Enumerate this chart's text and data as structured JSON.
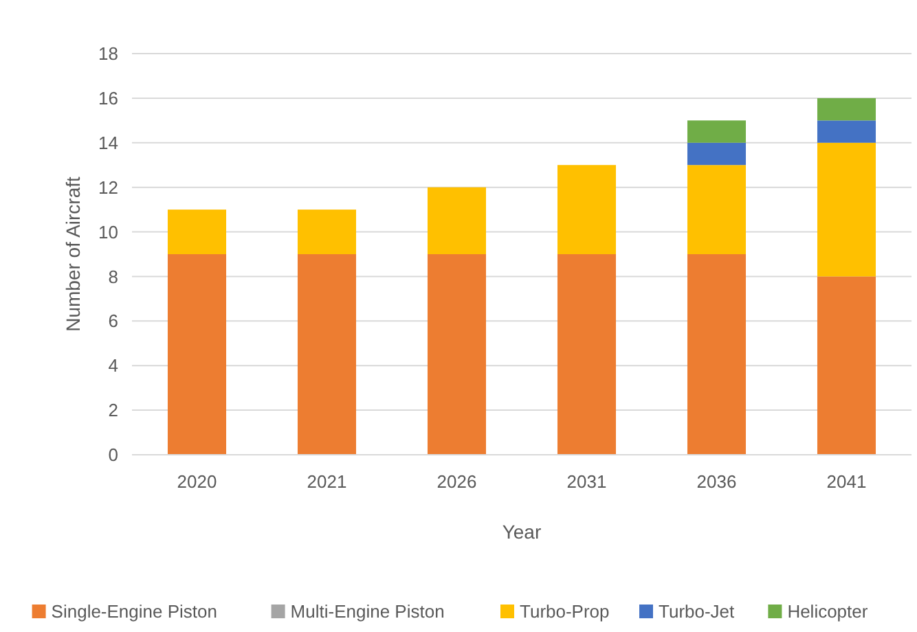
{
  "chart_data": {
    "type": "bar",
    "stacked": true,
    "xlabel": "Year",
    "ylabel": "Number of Aircraft",
    "categories": [
      "2020",
      "2021",
      "2026",
      "2031",
      "2036",
      "2041"
    ],
    "series": [
      {
        "name": "Single-Engine Piston",
        "color": "#ed7d31",
        "values": [
          9,
          9,
          9,
          9,
          9,
          8
        ]
      },
      {
        "name": "Multi-Engine Piston",
        "color": "#a5a5a5",
        "values": [
          0,
          0,
          0,
          0,
          0,
          0
        ]
      },
      {
        "name": "Turbo-Prop",
        "color": "#ffc000",
        "values": [
          2,
          2,
          3,
          4,
          4,
          6
        ]
      },
      {
        "name": "Turbo-Jet",
        "color": "#4472c4",
        "values": [
          0,
          0,
          0,
          0,
          1,
          1
        ]
      },
      {
        "name": "Helicopter",
        "color": "#70ad47",
        "values": [
          0,
          0,
          0,
          0,
          1,
          1
        ]
      }
    ],
    "ylim": [
      0,
      18
    ],
    "yticks": [
      0,
      2,
      4,
      6,
      8,
      10,
      12,
      14,
      16,
      18
    ],
    "grid": "y",
    "legend": "bottom"
  }
}
